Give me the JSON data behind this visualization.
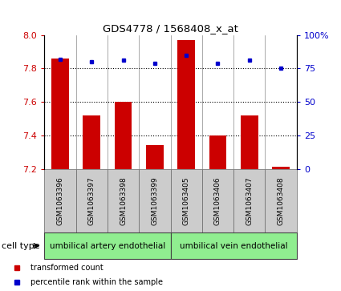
{
  "title": "GDS4778 / 1568408_x_at",
  "samples": [
    "GSM1063396",
    "GSM1063397",
    "GSM1063398",
    "GSM1063399",
    "GSM1063405",
    "GSM1063406",
    "GSM1063407",
    "GSM1063408"
  ],
  "transformed_count": [
    7.86,
    7.52,
    7.6,
    7.34,
    7.97,
    7.4,
    7.52,
    7.21
  ],
  "percentile_rank": [
    82,
    80,
    81,
    79,
    85,
    79,
    81,
    75
  ],
  "ylim": [
    7.2,
    8.0
  ],
  "yticks": [
    7.2,
    7.4,
    7.6,
    7.8,
    8.0
  ],
  "right_yticks": [
    0,
    25,
    50,
    75,
    100
  ],
  "right_ylim": [
    0,
    100
  ],
  "bar_color": "#cc0000",
  "dot_color": "#0000cc",
  "background_color": "#ffffff",
  "sample_box_color": "#cccccc",
  "groups": [
    {
      "label": "umbilical artery endothelial",
      "start": 0,
      "end": 4,
      "color": "#90ee90"
    },
    {
      "label": "umbilical vein endothelial",
      "start": 4,
      "end": 8,
      "color": "#90ee90"
    }
  ],
  "cell_type_label": "cell type",
  "legend_items": [
    {
      "color": "#cc0000",
      "label": "transformed count"
    },
    {
      "color": "#0000cc",
      "label": "percentile rank within the sample"
    }
  ],
  "bar_width": 0.55,
  "left_label_color": "#cc0000",
  "right_label_color": "#0000cc"
}
